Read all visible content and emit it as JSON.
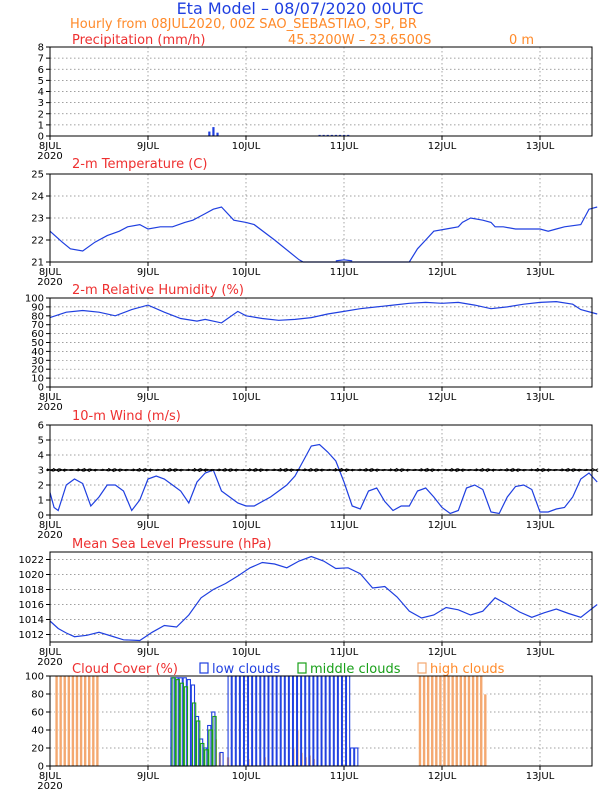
{
  "header": {
    "title": "Eta Model – 08/07/2020 00UTC",
    "subtitle": "Hourly from 08JUL2020, 00Z  SAO_SEBASTIAO, SP, BR",
    "coords": "45.3200W – 23.6500S",
    "elevation": "0   m"
  },
  "x_axis": {
    "ticks": [
      "8JUL",
      "9JUL",
      "10JUL",
      "11JUL",
      "12JUL",
      "13JUL"
    ],
    "year": "2020",
    "max_hour": 134
  },
  "chart_data": [
    {
      "type": "bar",
      "id": "precipitation",
      "title": "Precipitation (mm/h)",
      "ylim": [
        0,
        8
      ],
      "yticks": [
        0,
        1,
        2,
        3,
        4,
        5,
        6,
        7,
        8
      ],
      "x": [
        39,
        40,
        41,
        66,
        67,
        68,
        69,
        70,
        71,
        72,
        73
      ],
      "values": [
        0.4,
        0.8,
        0.3,
        0.1,
        0.1,
        0.1,
        0.1,
        0.1,
        0.1,
        0.1,
        0.1
      ],
      "color": "#1f3fe0"
    },
    {
      "type": "line",
      "id": "temperature",
      "title": "2-m Temperature (C)",
      "ylim": [
        21,
        25
      ],
      "yticks": [
        21,
        22,
        23,
        24,
        25
      ],
      "x": [
        0,
        3,
        5,
        8,
        11,
        14,
        17,
        19,
        22,
        24,
        27,
        30,
        33,
        35,
        36,
        38,
        40,
        42,
        45,
        48,
        50,
        55,
        61,
        62,
        63,
        64,
        88,
        90,
        92,
        94,
        97,
        100,
        101,
        103,
        106,
        108,
        109,
        111,
        114,
        117,
        120,
        122,
        124,
        126,
        130,
        132,
        134
      ],
      "values": [
        22.4,
        21.9,
        21.6,
        21.5,
        21.9,
        22.2,
        22.4,
        22.6,
        22.7,
        22.5,
        22.6,
        22.6,
        22.8,
        22.9,
        23.0,
        23.2,
        23.4,
        23.5,
        22.9,
        22.8,
        22.7,
        22.0,
        21.1,
        21.0,
        21.0,
        21.0,
        21.0,
        21.6,
        22.0,
        22.4,
        22.5,
        22.6,
        22.8,
        23.0,
        22.9,
        22.8,
        22.6,
        22.6,
        22.5,
        22.5,
        22.5,
        22.4,
        22.5,
        22.6,
        22.7,
        23.4,
        23.5
      ],
      "extra_segments": [
        {
          "x": [
            70,
            72,
            74
          ],
          "values": [
            21.05,
            21.1,
            21.05
          ]
        }
      ],
      "color": "#1f3fe0"
    },
    {
      "type": "line",
      "id": "humidity",
      "title": "2-m Relative Humidity (%)",
      "ylim": [
        0,
        100
      ],
      "yticks": [
        0,
        10,
        20,
        30,
        40,
        50,
        60,
        70,
        80,
        90,
        100
      ],
      "x": [
        0,
        4,
        8,
        12,
        16,
        20,
        24,
        28,
        32,
        36,
        38,
        42,
        46,
        48,
        52,
        56,
        60,
        64,
        68,
        72,
        76,
        80,
        84,
        88,
        92,
        96,
        100,
        104,
        108,
        112,
        116,
        120,
        124,
        128,
        130,
        134
      ],
      "values": [
        78,
        84,
        86,
        84,
        80,
        87,
        92,
        84,
        77,
        74,
        76,
        72,
        85,
        80,
        77,
        75,
        76,
        78,
        82,
        85,
        88,
        90,
        92,
        94,
        95,
        94,
        95,
        92,
        88,
        90,
        93,
        95,
        96,
        93,
        87,
        82
      ],
      "color": "#1f3fe0"
    },
    {
      "type": "line",
      "id": "wind",
      "title": "10-m Wind (m/s)",
      "ylim": [
        0,
        6
      ],
      "yticks": [
        0,
        1,
        2,
        3,
        4,
        5,
        6
      ],
      "x": [
        0,
        1,
        2,
        4,
        6,
        8,
        10,
        12,
        14,
        16,
        18,
        20,
        22,
        24,
        26,
        28,
        30,
        32,
        34,
        36,
        38,
        40,
        42,
        44,
        46,
        48,
        50,
        52,
        54,
        56,
        58,
        60,
        62,
        64,
        66,
        68,
        70,
        72,
        74,
        76,
        78,
        80,
        82,
        84,
        86,
        88,
        90,
        92,
        94,
        96,
        98,
        100,
        102,
        104,
        106,
        108,
        110,
        112,
        114,
        116,
        118,
        120,
        122,
        124,
        126,
        128,
        130,
        132,
        134
      ],
      "values": [
        1.5,
        0.5,
        0.3,
        2.0,
        2.4,
        2.1,
        0.6,
        1.2,
        2.0,
        2.0,
        1.6,
        0.3,
        1.0,
        2.4,
        2.6,
        2.4,
        2.0,
        1.6,
        0.8,
        2.2,
        2.8,
        3.0,
        1.6,
        1.2,
        0.8,
        0.6,
        0.6,
        0.9,
        1.2,
        1.6,
        2.0,
        2.6,
        3.6,
        4.6,
        4.7,
        4.2,
        3.6,
        2.2,
        0.6,
        0.4,
        1.6,
        1.8,
        0.9,
        0.3,
        0.6,
        0.6,
        1.6,
        1.8,
        1.2,
        0.5,
        0.1,
        0.3,
        1.8,
        2.0,
        1.7,
        0.2,
        0.1,
        1.2,
        1.9,
        2.0,
        1.7,
        0.2,
        0.2,
        0.4,
        0.5,
        1.2,
        2.4,
        2.8,
        2.2
      ],
      "barbs_level": 3,
      "color": "#1f3fe0"
    },
    {
      "type": "line",
      "id": "pressure",
      "title": "Mean Sea Level Pressure (hPa)",
      "ylim": [
        1011,
        1023
      ],
      "yticks": [
        1012,
        1014,
        1016,
        1018,
        1020,
        1022
      ],
      "x": [
        0,
        2,
        4,
        6,
        9,
        12,
        15,
        18,
        22,
        25,
        28,
        31,
        34,
        37,
        40,
        43,
        46,
        49,
        52,
        55,
        58,
        61,
        64,
        67,
        70,
        73,
        76,
        79,
        82,
        85,
        88,
        91,
        94,
        97,
        100,
        103,
        106,
        109,
        112,
        115,
        118,
        121,
        124,
        127,
        130,
        134
      ],
      "values": [
        1013.8,
        1012.8,
        1012.2,
        1011.7,
        1011.9,
        1012.3,
        1011.8,
        1011.3,
        1011.2,
        1012.3,
        1013.2,
        1013.0,
        1014.6,
        1016.9,
        1018.0,
        1018.8,
        1019.8,
        1020.9,
        1021.6,
        1021.4,
        1020.9,
        1021.8,
        1022.4,
        1021.8,
        1020.8,
        1020.9,
        1020.1,
        1018.2,
        1018.4,
        1017.0,
        1015.1,
        1014.2,
        1014.6,
        1015.6,
        1015.3,
        1014.6,
        1015.1,
        1016.9,
        1016.0,
        1015.0,
        1014.3,
        1014.9,
        1015.4,
        1014.8,
        1014.3,
        1016.0
      ],
      "color": "#1f3fe0"
    },
    {
      "type": "bar",
      "id": "cloud_cover",
      "title": "Cloud Cover (%)",
      "ylim": [
        0,
        100
      ],
      "yticks": [
        0,
        20,
        40,
        60,
        80,
        100
      ],
      "legend": [
        "low clouds",
        "middle clouds",
        "high clouds"
      ],
      "series": [
        {
          "name": "low clouds",
          "color": "#1f3fe0",
          "x": [
            30,
            31,
            32,
            33,
            34,
            35,
            36,
            37,
            38,
            39,
            40,
            42,
            44,
            45,
            46,
            47,
            48,
            49,
            50,
            51,
            52,
            53,
            54,
            55,
            56,
            57,
            58,
            59,
            60,
            61,
            62,
            63,
            64,
            65,
            66,
            67,
            68,
            69,
            70,
            71,
            72,
            73,
            74,
            75
          ],
          "values": [
            98,
            98,
            98,
            98,
            96,
            90,
            55,
            30,
            20,
            45,
            60,
            15,
            100,
            100,
            100,
            100,
            100,
            100,
            100,
            100,
            100,
            100,
            100,
            100,
            100,
            100,
            100,
            100,
            100,
            100,
            100,
            100,
            100,
            100,
            100,
            100,
            100,
            100,
            100,
            100,
            100,
            100,
            20,
            20
          ]
        },
        {
          "name": "middle clouds",
          "color": "#18a018",
          "x": [
            30,
            31,
            32,
            33,
            35,
            36,
            37,
            38,
            39,
            40
          ],
          "values": [
            98,
            96,
            92,
            88,
            70,
            50,
            25,
            18,
            40,
            55
          ]
        },
        {
          "name": "high clouds",
          "color": "#f4a870",
          "x": [
            2,
            3,
            4,
            5,
            6,
            7,
            8,
            9,
            10,
            11,
            12,
            41,
            42,
            44,
            49,
            53,
            60,
            61,
            62,
            63,
            64,
            65,
            91,
            92,
            93,
            94,
            95,
            96,
            97,
            98,
            99,
            100,
            101,
            102,
            103,
            104,
            105,
            106,
            107
          ],
          "values": [
            100,
            100,
            100,
            100,
            100,
            100,
            100,
            100,
            100,
            100,
            100,
            30,
            15,
            10,
            8,
            10,
            20,
            40,
            15,
            10,
            12,
            8,
            100,
            100,
            100,
            100,
            100,
            100,
            100,
            100,
            100,
            100,
            100,
            100,
            100,
            100,
            100,
            100,
            80
          ]
        }
      ]
    }
  ]
}
